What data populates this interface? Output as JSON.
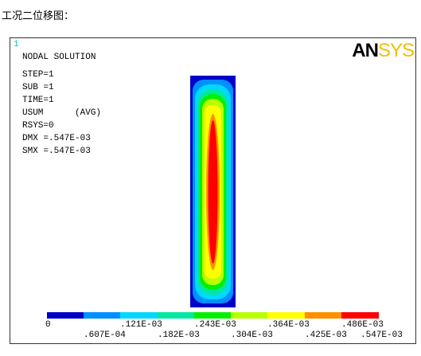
{
  "caption": "工况二位移图：",
  "panel": {
    "window_number": "1",
    "heading": "NODAL SOLUTION",
    "info_lines": [
      "STEP=1",
      "SUB =1",
      "TIME=1",
      "USUM      (AVG)",
      "RSYS=0",
      "DMX =.547E-03",
      "SMX =.547E-03"
    ],
    "logo": {
      "an": "AN",
      "sys": "SYS"
    },
    "legend": {
      "top_labels": [
        "0",
        ".121E-03",
        ".243E-03",
        ".364E-03",
        ".486E-03"
      ],
      "bottom_labels": [
        ".607E-04",
        ".182E-03",
        ".304E-03",
        ".425E-03",
        ".547E-03"
      ]
    }
  }
}
